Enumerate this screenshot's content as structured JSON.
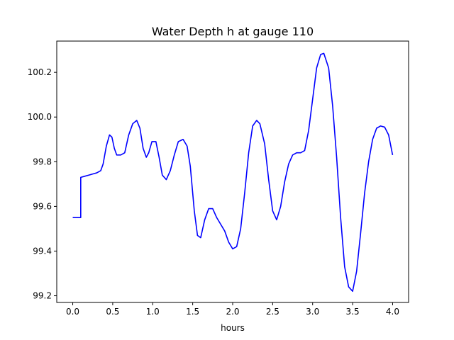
{
  "chart_data": {
    "type": "line",
    "title": "Water Depth h at gauge 110",
    "xlabel": "hours",
    "ylabel": "",
    "xlim": [
      -0.2,
      4.2
    ],
    "ylim": [
      99.17,
      100.34
    ],
    "xticks": [
      0.0,
      0.5,
      1.0,
      1.5,
      2.0,
      2.5,
      3.0,
      3.5,
      4.0
    ],
    "xtick_labels": [
      "0.0",
      "0.5",
      "1.0",
      "1.5",
      "2.0",
      "2.5",
      "3.0",
      "3.5",
      "4.0"
    ],
    "yticks": [
      99.2,
      99.4,
      99.6,
      99.8,
      100.0,
      100.2
    ],
    "ytick_labels": [
      "99.2",
      "99.4",
      "99.6",
      "99.8",
      "100.0",
      "100.2"
    ],
    "grid": false,
    "series": [
      {
        "color": "#0000ff",
        "x": [
          0.0,
          0.05,
          0.1,
          0.1,
          0.15,
          0.2,
          0.25,
          0.3,
          0.35,
          0.38,
          0.42,
          0.46,
          0.49,
          0.52,
          0.55,
          0.6,
          0.65,
          0.7,
          0.75,
          0.8,
          0.84,
          0.88,
          0.92,
          0.95,
          0.99,
          1.04,
          1.08,
          1.12,
          1.17,
          1.22,
          1.27,
          1.32,
          1.38,
          1.43,
          1.47,
          1.52,
          1.56,
          1.6,
          1.65,
          1.7,
          1.75,
          1.8,
          1.85,
          1.9,
          1.95,
          2.0,
          2.05,
          2.1,
          2.15,
          2.2,
          2.25,
          2.3,
          2.34,
          2.4,
          2.45,
          2.5,
          2.55,
          2.6,
          2.65,
          2.7,
          2.75,
          2.8,
          2.85,
          2.9,
          2.95,
          3.0,
          3.05,
          3.1,
          3.14,
          3.2,
          3.25,
          3.3,
          3.35,
          3.4,
          3.45,
          3.5,
          3.55,
          3.6,
          3.65,
          3.7,
          3.75,
          3.8,
          3.85,
          3.9,
          3.95,
          4.0
        ],
        "y": [
          99.55,
          99.55,
          99.55,
          99.73,
          99.735,
          99.74,
          99.745,
          99.75,
          99.76,
          99.79,
          99.87,
          99.92,
          99.91,
          99.86,
          99.83,
          99.83,
          99.84,
          99.92,
          99.97,
          99.985,
          99.95,
          99.86,
          99.82,
          99.84,
          99.89,
          99.89,
          99.82,
          99.74,
          99.72,
          99.76,
          99.83,
          99.89,
          99.9,
          99.87,
          99.78,
          99.58,
          99.47,
          99.46,
          99.54,
          99.59,
          99.59,
          99.55,
          99.52,
          99.49,
          99.44,
          99.41,
          99.42,
          99.5,
          99.66,
          99.84,
          99.96,
          99.985,
          99.97,
          99.88,
          99.72,
          99.58,
          99.54,
          99.6,
          99.71,
          99.79,
          99.83,
          99.84,
          99.84,
          99.85,
          99.94,
          100.08,
          100.22,
          100.28,
          100.285,
          100.22,
          100.05,
          99.82,
          99.55,
          99.33,
          99.24,
          99.22,
          99.31,
          99.48,
          99.66,
          99.8,
          99.9,
          99.95,
          99.96,
          99.955,
          99.92,
          99.83
        ]
      }
    ]
  }
}
